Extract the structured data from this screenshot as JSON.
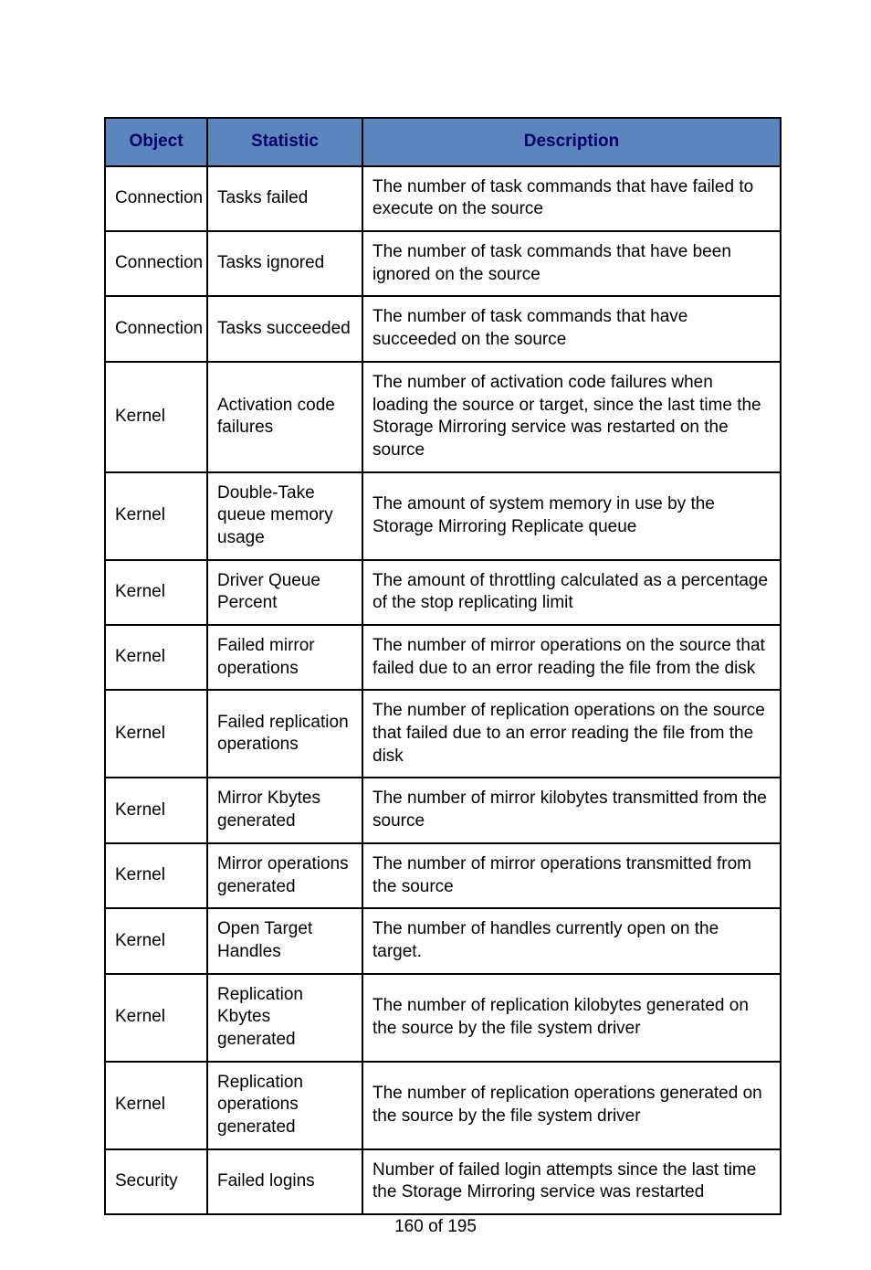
{
  "table": {
    "header_bg": "#5b85bd",
    "header_color": "#000066",
    "border_color": "#000000",
    "columns": [
      "Object",
      "Statistic",
      "Description"
    ],
    "rows": [
      [
        "Connection",
        "Tasks failed",
        "The number of task commands that have failed to execute on the source"
      ],
      [
        "Connection",
        "Tasks ignored",
        "The number of task commands that have been ignored on the source"
      ],
      [
        "Connection",
        "Tasks succeeded",
        "The number of task commands that have succeeded on the source"
      ],
      [
        "Kernel",
        "Activation code failures",
        "The number of activation code failures when loading the source or target, since the last time the Storage Mirroring service was restarted on the source"
      ],
      [
        "Kernel",
        "Double-Take queue memory usage",
        "The amount of system memory in use by the Storage Mirroring Replicate queue"
      ],
      [
        "Kernel",
        "Driver Queue Percent",
        "The amount of throttling calculated as a percentage of the stop replicating limit"
      ],
      [
        "Kernel",
        "Failed mirror operations",
        "The number of mirror operations on the source that failed due to an error reading the file from the disk"
      ],
      [
        "Kernel",
        "Failed replication operations",
        "The number of replication operations on the source that failed due to an error reading the file from the disk"
      ],
      [
        "Kernel",
        "Mirror Kbytes generated",
        "The number of mirror kilobytes transmitted from the source"
      ],
      [
        "Kernel",
        "Mirror operations generated",
        "The number of mirror operations transmitted from the source"
      ],
      [
        "Kernel",
        "Open Target Handles",
        "The number of handles currently open on the target."
      ],
      [
        "Kernel",
        "Replication Kbytes generated",
        "The number of replication kilobytes generated on the source by the file system driver"
      ],
      [
        "Kernel",
        "Replication operations generated",
        "The number of replication operations generated on the source by the file system driver"
      ],
      [
        "Security",
        "Failed logins",
        "Number of failed login attempts since the last time the Storage Mirroring service was restarted"
      ]
    ]
  },
  "footer": "160 of 195"
}
